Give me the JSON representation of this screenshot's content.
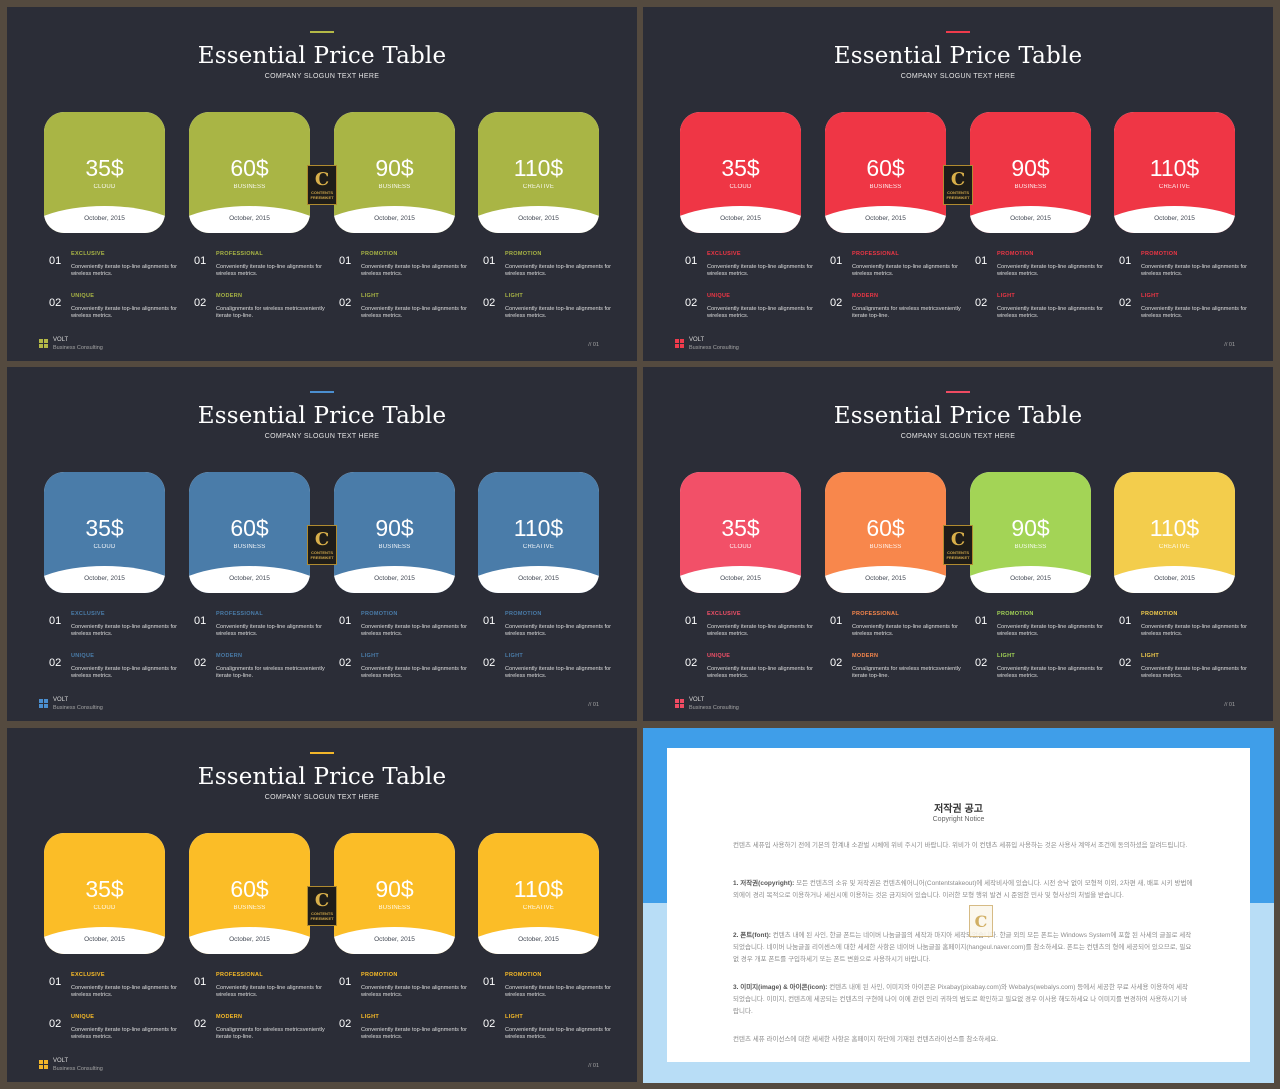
{
  "title": "Essential Price Table",
  "slogan": "COMPANY SLOGUN TEXT HERE",
  "brand": {
    "name": "VOLT",
    "sub": "Business Consulting"
  },
  "page_number": "// 01",
  "watermark": {
    "letter": "C",
    "line1": "CONTENTS",
    "line2": "FREEMIKET"
  },
  "pricing": [
    {
      "price": "35$",
      "tier": "CLOUD",
      "date": "October, 2015",
      "features": [
        {
          "num": "01",
          "title": "EXCLUSIVE",
          "desc": "Conveniently iterate top-line alignments for wireless metrics."
        },
        {
          "num": "02",
          "title": "UNIQUE",
          "desc": "Conveniently iterate top-line alignments for wireless metrics."
        }
      ]
    },
    {
      "price": "60$",
      "tier": "BUSINESS",
      "date": "October, 2015",
      "features": [
        {
          "num": "01",
          "title": "PROFESSIONAL",
          "desc": "Conveniently iterate top-line alignments for wireless metrics."
        },
        {
          "num": "02",
          "title": "MODERN",
          "desc": "Conalignments for wireless metricsveniently iterate top-line."
        }
      ]
    },
    {
      "price": "90$",
      "tier": "BUSINESS",
      "date": "October, 2015",
      "features": [
        {
          "num": "01",
          "title": "PROMOTION",
          "desc": "Conveniently iterate top-line alignments for wireless metrics."
        },
        {
          "num": "02",
          "title": "LIGHT",
          "desc": "Conveniently iterate top-line alignments for wireless metrics."
        }
      ]
    },
    {
      "price": "110$",
      "tier": "CREATIVE",
      "date": "October, 2015",
      "features": [
        {
          "num": "01",
          "title": "PROMOTION",
          "desc": "Conveniently iterate top-line alignments for wireless metrics."
        },
        {
          "num": "02",
          "title": "LIGHT",
          "desc": "Conveniently iterate top-line alignments for wireless metrics."
        }
      ]
    }
  ],
  "themes": [
    {
      "accent": "#b4b947",
      "cards": [
        "#a9b545",
        "#a9b545",
        "#a9b545",
        "#a9b545"
      ]
    },
    {
      "accent": "#ef3b4c",
      "cards": [
        "#ef3645",
        "#ef3645",
        "#ef3645",
        "#ef3645"
      ]
    },
    {
      "accent": "#4b8fd0",
      "cards": [
        "#4a7ca9",
        "#4a7ca9",
        "#4a7ca9",
        "#4a7ca9"
      ]
    },
    {
      "accent": "#ef4b62",
      "cards": [
        "#f25068",
        "#f8874c",
        "#a3d456",
        "#f3cd4c"
      ]
    },
    {
      "accent": "#f2b62a",
      "cards": [
        "#fbbd27",
        "#fbbd27",
        "#fbbd27",
        "#fbbd27"
      ]
    }
  ],
  "notice": {
    "title": "저작권 공고",
    "subtitle": "Copyright Notice",
    "intro": "컨텐츠 세퓨입 사용하기 전에 기본의 한계내 소관벌 시체에 위비 주시기 바랍니다. 위비가 이 컨텐츠 세퓨입 사용하는 것은 사용사 계약서 조건에 동의하셨음 알려드립니다.",
    "items": [
      {
        "heading": "1. 저작권(copyright):",
        "text": "모든 컨텐츠의 소유 및 저작권은 컨텐츠쉐어니어(Contentstakeout)에 세작비사에 있습니다. 시전 승낙 없이 모형적 이외, 2차편 새, 배포 시키 방법에 외에이 경리 목적으로 이용하거나 세신시에 이용하는 것은 금지되어 있습니다. 이러한 모형 행위 발견 시 준엄한 민사 및 형사상의 처벌을 받습니다."
      },
      {
        "heading": "2. 폰트(font):",
        "text": "컨텐츠 내에 된 사인, 한글 폰트는 네이버 나눔글꼴의 세작과 마지아 세작되었습니다. 한글 외의 모든 폰트는 Windows System에 포함 된 사세의 글꼴로 세작되었습니다. 네이버 나눔글꼴 리이센스에 대한 세세한 사항은 네이버 나눔글꼴 홈페이지(hangeul.naver.com)를 참소하세요. 폰트는 컨텐츠의 형에 세공되어 있으므로, 필요없 경우 개포 폰트를 구입하세기 또는 폰트 변환으로 사용하시기 바랍니다."
      },
      {
        "heading": "3. 이미지(image) & 아이콘(icon):",
        "text": "컨텐츠 내에 된 사인, 이미지와 아이콘은 Pixabay(pixabay.com)와 Webalys(webalys.com) 등에서 세공한 무료 사세용 이용하여 세작되었습니다. 이미지, 컨텐츠에 세공되는 컨텐츠의 구현에 나이 이에 관련 인리 귀하의 범도로 확인하고 필요없 경우 이사용 해도하세요 나 이미지를 변경하여 사용하시기 바랍니다."
      }
    ],
    "footer": "컨텐츠 세퓨 라이선스에 대한 세세한 사항은 홈페이지 하단에 기재된 컨텐츠라이선스를 참소하세요."
  }
}
